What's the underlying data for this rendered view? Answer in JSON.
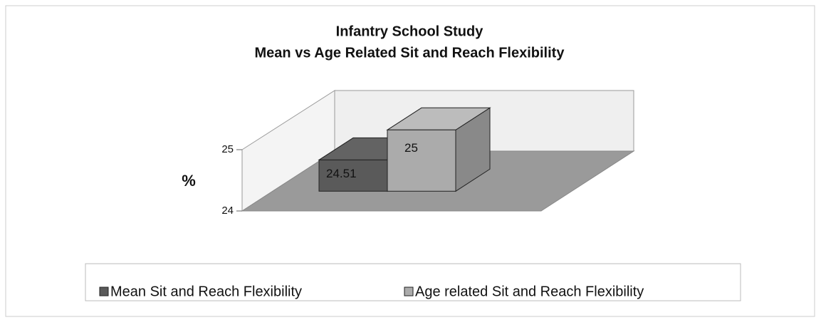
{
  "chart_data": {
    "type": "bar3d",
    "title": [
      "Infantry School Study",
      "Mean vs Age Related Sit and Reach Flexibility"
    ],
    "ylabel": "%",
    "ylim": [
      24,
      25
    ],
    "yticks": [
      24,
      25
    ],
    "series": [
      {
        "name": "Mean Sit and Reach Flexibility",
        "color": "#5a5a5a",
        "values": [
          24.51
        ]
      },
      {
        "name": "Age related Sit and Reach Flexibility",
        "color": "#ababab",
        "values": [
          25
        ]
      }
    ],
    "legend": "bottom"
  }
}
